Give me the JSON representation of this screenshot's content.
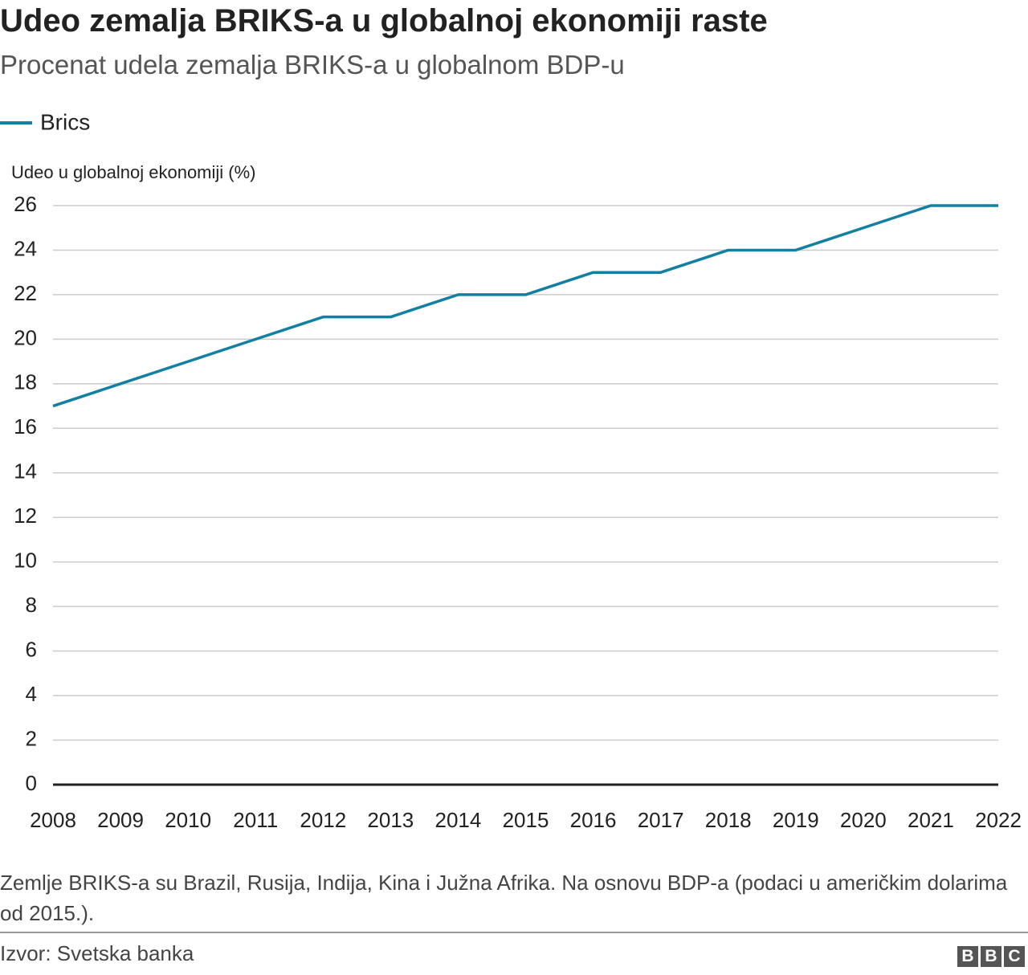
{
  "chart_data": {
    "type": "line",
    "title": "Udeo zemalja BRIKS-a u globalnoj ekonomiji raste",
    "subtitle": "Procenat udela zemalja BRIKS-a u globalnom BDP-u",
    "y_label": "Udeo u globalnoj ekonomiji (%)",
    "x": [
      2008,
      2009,
      2010,
      2011,
      2012,
      2013,
      2014,
      2015,
      2016,
      2017,
      2018,
      2019,
      2020,
      2021,
      2022
    ],
    "series": [
      {
        "name": "Brics",
        "color": "#1380a1",
        "values": [
          17,
          18,
          19,
          20,
          21,
          21,
          22,
          22,
          23,
          23,
          24,
          24,
          25,
          26,
          26
        ]
      }
    ],
    "xlim": [
      2008,
      2022
    ],
    "xticks": [
      2008,
      2009,
      2010,
      2011,
      2012,
      2013,
      2014,
      2015,
      2016,
      2017,
      2018,
      2019,
      2020,
      2021,
      2022
    ],
    "ylim": [
      0,
      26
    ],
    "yticks": [
      0,
      2,
      4,
      6,
      8,
      10,
      12,
      14,
      16,
      18,
      20,
      22,
      24,
      26
    ],
    "grid": true,
    "legend": "top-left",
    "note": "Zemlje BRIKS-a su Brazil, Rusija, Indija, Kina i Južna Afrika. Na osnovu BDP-a (podaci u američkim dolarima od 2015.).",
    "source": "Izvor: Svetska banka",
    "logo": [
      "B",
      "B",
      "C"
    ]
  }
}
